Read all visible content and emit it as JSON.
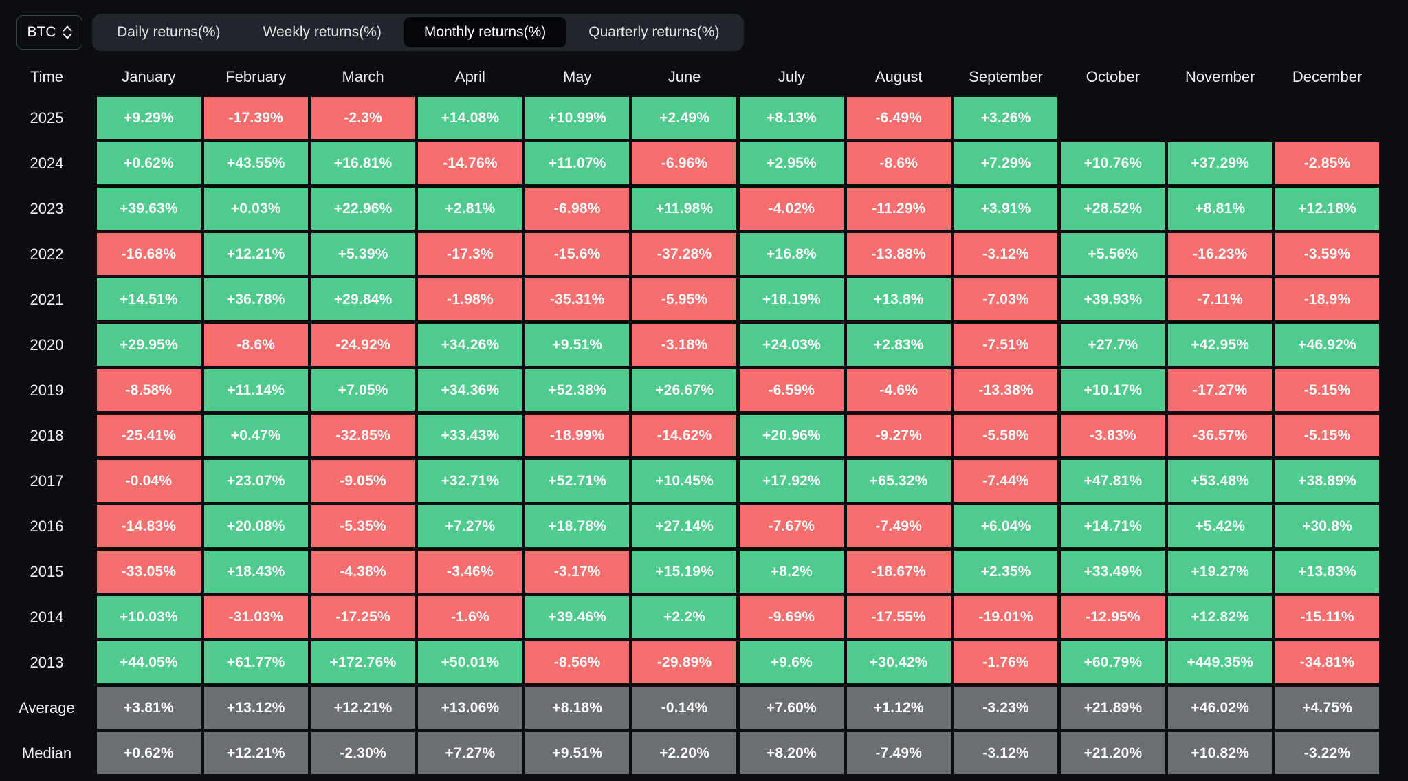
{
  "topbar": {
    "symbol": "BTC",
    "tabs": [
      {
        "label": "Daily returns(%)",
        "active": false
      },
      {
        "label": "Weekly returns(%)",
        "active": false
      },
      {
        "label": "Monthly returns(%)",
        "active": true
      },
      {
        "label": "Quarterly returns(%)",
        "active": false
      }
    ]
  },
  "colors": {
    "positive": "#4ecb8d",
    "negative": "#f76e6e",
    "stat": "#6b6e72",
    "background": "#0b0d11",
    "tabbar": "#22262c",
    "active_tab": "#05060a"
  },
  "chart_data": {
    "type": "heatmap",
    "title": "BTC Monthly returns(%)",
    "time_header": "Time",
    "columns": [
      "January",
      "February",
      "March",
      "April",
      "May",
      "June",
      "July",
      "August",
      "September",
      "October",
      "November",
      "December"
    ],
    "rows": [
      {
        "label": "2025",
        "kind": "year",
        "values": [
          "+9.29%",
          "-17.39%",
          "-2.3%",
          "+14.08%",
          "+10.99%",
          "+2.49%",
          "+8.13%",
          "-6.49%",
          "+3.26%",
          "",
          "",
          ""
        ]
      },
      {
        "label": "2024",
        "kind": "year",
        "values": [
          "+0.62%",
          "+43.55%",
          "+16.81%",
          "-14.76%",
          "+11.07%",
          "-6.96%",
          "+2.95%",
          "-8.6%",
          "+7.29%",
          "+10.76%",
          "+37.29%",
          "-2.85%"
        ]
      },
      {
        "label": "2023",
        "kind": "year",
        "values": [
          "+39.63%",
          "+0.03%",
          "+22.96%",
          "+2.81%",
          "-6.98%",
          "+11.98%",
          "-4.02%",
          "-11.29%",
          "+3.91%",
          "+28.52%",
          "+8.81%",
          "+12.18%"
        ]
      },
      {
        "label": "2022",
        "kind": "year",
        "values": [
          "-16.68%",
          "+12.21%",
          "+5.39%",
          "-17.3%",
          "-15.6%",
          "-37.28%",
          "+16.8%",
          "-13.88%",
          "-3.12%",
          "+5.56%",
          "-16.23%",
          "-3.59%"
        ]
      },
      {
        "label": "2021",
        "kind": "year",
        "values": [
          "+14.51%",
          "+36.78%",
          "+29.84%",
          "-1.98%",
          "-35.31%",
          "-5.95%",
          "+18.19%",
          "+13.8%",
          "-7.03%",
          "+39.93%",
          "-7.11%",
          "-18.9%"
        ]
      },
      {
        "label": "2020",
        "kind": "year",
        "values": [
          "+29.95%",
          "-8.6%",
          "-24.92%",
          "+34.26%",
          "+9.51%",
          "-3.18%",
          "+24.03%",
          "+2.83%",
          "-7.51%",
          "+27.7%",
          "+42.95%",
          "+46.92%"
        ]
      },
      {
        "label": "2019",
        "kind": "year",
        "values": [
          "-8.58%",
          "+11.14%",
          "+7.05%",
          "+34.36%",
          "+52.38%",
          "+26.67%",
          "-6.59%",
          "-4.6%",
          "-13.38%",
          "+10.17%",
          "-17.27%",
          "-5.15%"
        ]
      },
      {
        "label": "2018",
        "kind": "year",
        "values": [
          "-25.41%",
          "+0.47%",
          "-32.85%",
          "+33.43%",
          "-18.99%",
          "-14.62%",
          "+20.96%",
          "-9.27%",
          "-5.58%",
          "-3.83%",
          "-36.57%",
          "-5.15%"
        ]
      },
      {
        "label": "2017",
        "kind": "year",
        "values": [
          "-0.04%",
          "+23.07%",
          "-9.05%",
          "+32.71%",
          "+52.71%",
          "+10.45%",
          "+17.92%",
          "+65.32%",
          "-7.44%",
          "+47.81%",
          "+53.48%",
          "+38.89%"
        ]
      },
      {
        "label": "2016",
        "kind": "year",
        "values": [
          "-14.83%",
          "+20.08%",
          "-5.35%",
          "+7.27%",
          "+18.78%",
          "+27.14%",
          "-7.67%",
          "-7.49%",
          "+6.04%",
          "+14.71%",
          "+5.42%",
          "+30.8%"
        ]
      },
      {
        "label": "2015",
        "kind": "year",
        "values": [
          "-33.05%",
          "+18.43%",
          "-4.38%",
          "-3.46%",
          "-3.17%",
          "+15.19%",
          "+8.2%",
          "-18.67%",
          "+2.35%",
          "+33.49%",
          "+19.27%",
          "+13.83%"
        ]
      },
      {
        "label": "2014",
        "kind": "year",
        "values": [
          "+10.03%",
          "-31.03%",
          "-17.25%",
          "-1.6%",
          "+39.46%",
          "+2.2%",
          "-9.69%",
          "-17.55%",
          "-19.01%",
          "-12.95%",
          "+12.82%",
          "-15.11%"
        ]
      },
      {
        "label": "2013",
        "kind": "year",
        "values": [
          "+44.05%",
          "+61.77%",
          "+172.76%",
          "+50.01%",
          "-8.56%",
          "-29.89%",
          "+9.6%",
          "+30.42%",
          "-1.76%",
          "+60.79%",
          "+449.35%",
          "-34.81%"
        ]
      },
      {
        "label": "Average",
        "kind": "stat",
        "values": [
          "+3.81%",
          "+13.12%",
          "+12.21%",
          "+13.06%",
          "+8.18%",
          "-0.14%",
          "+7.60%",
          "+1.12%",
          "-3.23%",
          "+21.89%",
          "+46.02%",
          "+4.75%"
        ]
      },
      {
        "label": "Median",
        "kind": "stat",
        "values": [
          "+0.62%",
          "+12.21%",
          "-2.30%",
          "+7.27%",
          "+9.51%",
          "+2.20%",
          "+8.20%",
          "-7.49%",
          "-3.12%",
          "+21.20%",
          "+10.82%",
          "-3.22%"
        ]
      }
    ]
  }
}
